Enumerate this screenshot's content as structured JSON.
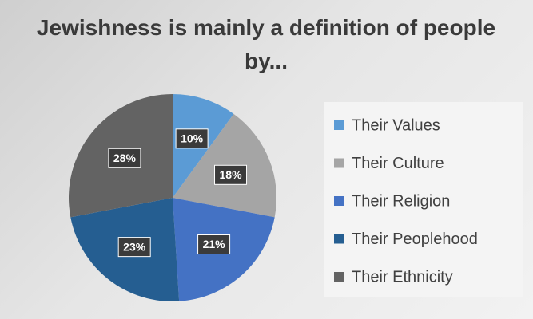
{
  "chart_data": {
    "type": "pie",
    "title": "Jewishness is mainly a definition of people by...",
    "categories": [
      "Their Values",
      "Their Culture",
      "Their Religion",
      "Their Peoplehood",
      "Their Ethnicity"
    ],
    "values": [
      10,
      18,
      21,
      23,
      28
    ],
    "value_labels": [
      "10%",
      "18%",
      "21%",
      "23%",
      "28%"
    ],
    "colors": [
      "#5b9bd5",
      "#a5a5a5",
      "#4472c4",
      "#255e91",
      "#636363"
    ],
    "legend": "right"
  }
}
